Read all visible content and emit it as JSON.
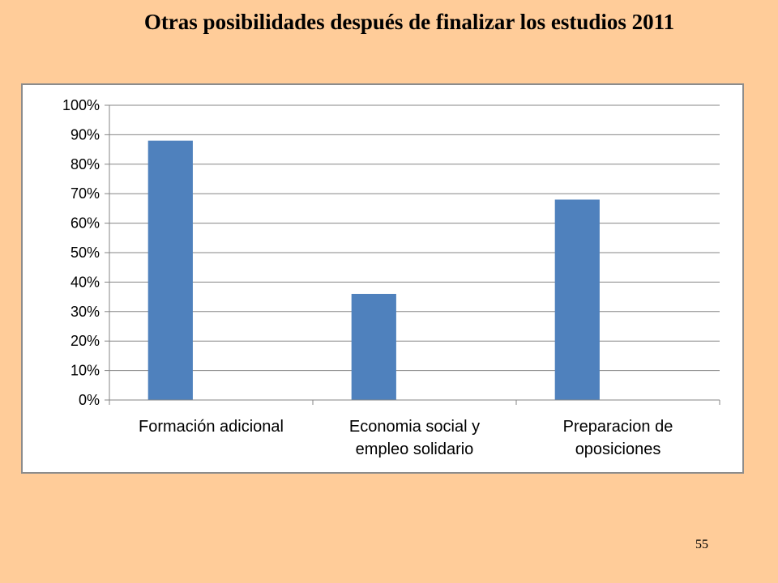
{
  "slide": {
    "title": "Otras posibilidades después de finalizar los estudios 2011",
    "page_number": "55"
  },
  "colors": {
    "background": "#FFCC99",
    "bar": "#4F81BD",
    "gridline": "#868686",
    "frame_border": "#8C8C8C"
  },
  "chart_data": {
    "type": "bar",
    "title": "",
    "xlabel": "",
    "ylabel": "",
    "categories": [
      [
        "Formación adicional"
      ],
      [
        "Economia social y",
        "empleo solidario"
      ],
      [
        "Preparacion de",
        "oposiciones"
      ]
    ],
    "values": [
      88,
      36,
      68
    ],
    "ylim": [
      0,
      100
    ],
    "ytick_step": 10,
    "ytick_labels": [
      "0%",
      "10%",
      "20%",
      "30%",
      "40%",
      "50%",
      "60%",
      "70%",
      "80%",
      "90%",
      "100%"
    ],
    "grid": true,
    "legend": "none"
  }
}
